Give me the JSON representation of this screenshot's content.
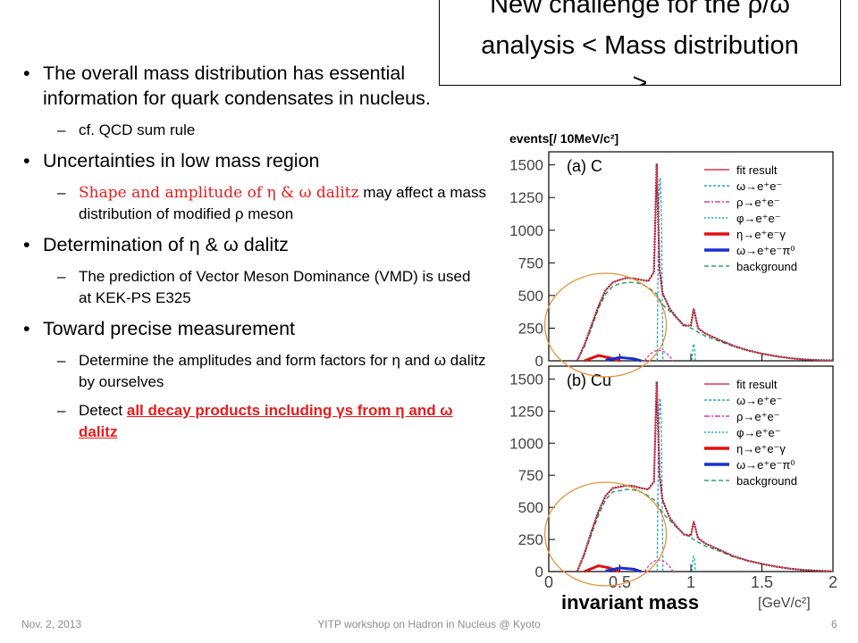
{
  "title": {
    "line1": "New challenge for the ρ/ω",
    "line2": "analysis < Mass distribution",
    "line3": ">"
  },
  "bullets": [
    {
      "text": "The overall mass distribution has essential information for quark condensates in nucleus.",
      "subs": [
        {
          "text": "cf. QCD sum rule"
        }
      ]
    },
    {
      "text": "Uncertainties in low mass region",
      "subs": [
        {
          "red": "Shape and amplitude of η & ω dalitz",
          "rest": " may affect a mass distribution of modified ρ meson"
        }
      ]
    },
    {
      "text": "Determination of η & ω dalitz",
      "subs": [
        {
          "text": "The prediction of Vector Meson Dominance (VMD) is used at KEK-PS E325"
        }
      ]
    },
    {
      "text": "Toward precise measurement",
      "subs": [
        {
          "text": "Determine the amplitudes and form factors for η and ω dalitz by ourselves"
        },
        {
          "pre": "Detect ",
          "redu": "all decay products including γs from η and ω dalitz"
        }
      ]
    }
  ],
  "footer": {
    "date": "Nov. 2, 2013",
    "center": "YITP workshop on  Hadron in Nucleus @ Kyoto",
    "page": "6"
  },
  "chart_data": {
    "type": "line",
    "ylabel": "events[/ 10MeV/c²]",
    "xlabel": "invariant mass",
    "xunit": "[GeV/c²]",
    "xlim": [
      0,
      2
    ],
    "ylim": [
      0,
      1600
    ],
    "xticks": [
      "0",
      "0.5",
      "1",
      "1.5",
      "2"
    ],
    "yticks": [
      "0",
      "250",
      "500",
      "750",
      "1000",
      "1250",
      "1500"
    ],
    "legend": [
      "fit result",
      "ω→e⁺e⁻",
      "ρ→e⁺e⁻",
      "φ→e⁺e⁻",
      "η→e⁺e⁻γ",
      "ω→e⁺e⁻π⁰",
      "background"
    ],
    "colors": {
      "data": "#000000",
      "fit": "#e8324a",
      "omega": "#2a9fd8",
      "rho": "#e0369a",
      "phi": "#19b3b3",
      "eta_dalitz": "#e01010",
      "omega_dalitz": "#1a2fd0",
      "background": "#2aa56a",
      "ellipse": "#e8913a"
    },
    "panels": [
      {
        "label": "(a) C",
        "x": [
          0.2,
          0.25,
          0.3,
          0.35,
          0.4,
          0.45,
          0.5,
          0.55,
          0.6,
          0.65,
          0.7,
          0.74,
          0.76,
          0.78,
          0.8,
          0.85,
          0.9,
          0.95,
          1.0,
          1.02,
          1.05,
          1.1,
          1.2,
          1.3,
          1.4,
          1.5,
          1.6,
          1.7,
          1.8,
          1.9,
          2.0
        ],
        "fit": [
          0,
          120,
          270,
          420,
          540,
          600,
          620,
          635,
          630,
          620,
          610,
          680,
          1510,
          700,
          520,
          400,
          330,
          270,
          270,
          400,
          250,
          210,
          160,
          115,
          80,
          55,
          35,
          20,
          10,
          5,
          2
        ],
        "background": [
          0,
          110,
          250,
          400,
          510,
          570,
          590,
          600,
          600,
          590,
          560,
          530,
          510,
          470,
          430,
          380,
          330,
          280,
          250,
          240,
          220,
          190,
          150,
          110,
          80,
          55,
          35,
          20,
          10,
          5,
          2
        ],
        "omega_peak": {
          "x": 0.783,
          "y": 1400
        },
        "rho_peak": {
          "x": 0.775,
          "y": 80
        },
        "phi_peak": {
          "x": 1.02,
          "y": 130
        },
        "eta_dalitz": {
          "x": [
            0.25,
            0.35,
            0.42,
            0.5
          ],
          "y": [
            0,
            40,
            25,
            0
          ]
        },
        "omega_dalitz": {
          "x": [
            0.4,
            0.5,
            0.6,
            0.65
          ],
          "y": [
            5,
            25,
            15,
            0
          ]
        }
      },
      {
        "label": "(b) Cu",
        "x": [
          0.2,
          0.25,
          0.3,
          0.35,
          0.4,
          0.45,
          0.5,
          0.55,
          0.6,
          0.65,
          0.7,
          0.74,
          0.76,
          0.78,
          0.8,
          0.85,
          0.9,
          0.95,
          1.0,
          1.02,
          1.05,
          1.1,
          1.2,
          1.3,
          1.4,
          1.5,
          1.6,
          1.7,
          1.8,
          1.9,
          2.0
        ],
        "fit": [
          0,
          140,
          310,
          470,
          590,
          650,
          660,
          670,
          665,
          650,
          640,
          700,
          1480,
          750,
          560,
          420,
          350,
          290,
          280,
          390,
          260,
          220,
          170,
          120,
          85,
          60,
          38,
          22,
          12,
          6,
          2
        ],
        "background": [
          0,
          130,
          290,
          440,
          560,
          620,
          630,
          640,
          635,
          620,
          590,
          560,
          540,
          500,
          455,
          400,
          345,
          295,
          265,
          250,
          230,
          200,
          160,
          115,
          85,
          60,
          38,
          22,
          12,
          6,
          2
        ],
        "omega_peak": {
          "x": 0.783,
          "y": 1350
        },
        "rho_peak": {
          "x": 0.775,
          "y": 90
        },
        "phi_peak": {
          "x": 1.02,
          "y": 120
        },
        "eta_dalitz": {
          "x": [
            0.25,
            0.35,
            0.42,
            0.5
          ],
          "y": [
            0,
            45,
            30,
            0
          ]
        },
        "omega_dalitz": {
          "x": [
            0.4,
            0.5,
            0.6,
            0.65
          ],
          "y": [
            5,
            28,
            18,
            0
          ]
        }
      }
    ]
  }
}
